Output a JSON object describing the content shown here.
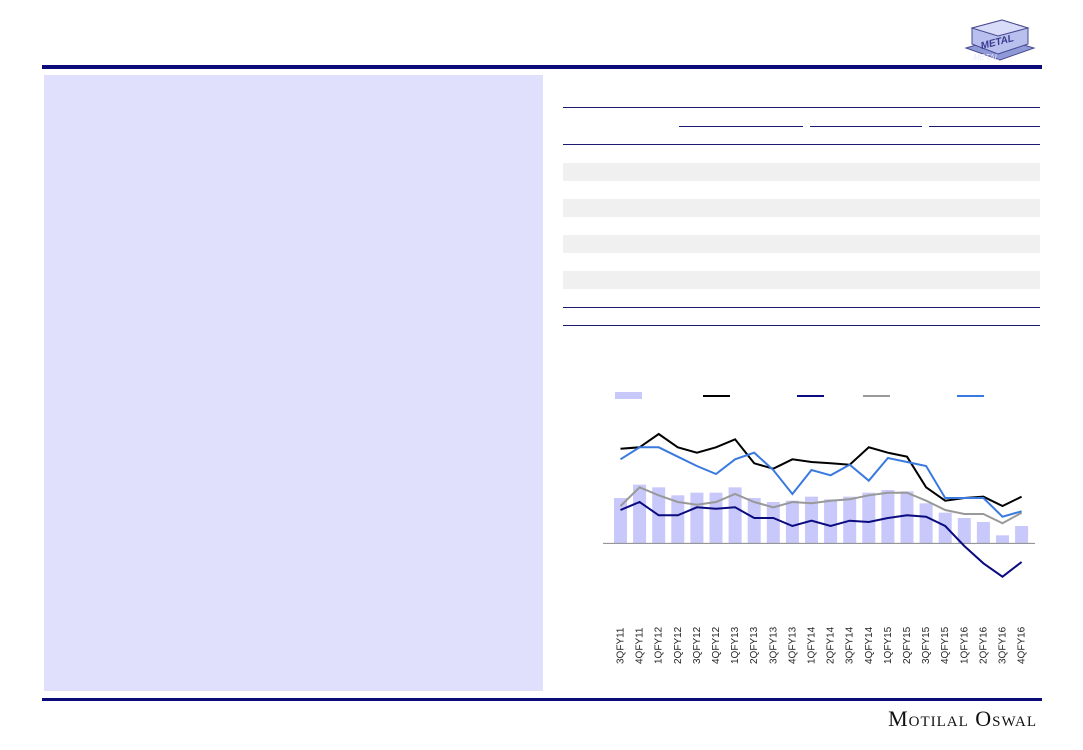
{
  "logo": {
    "text": "METAL",
    "text_lower": "METAL"
  },
  "brand": "Motilal Oswal",
  "colors": {
    "rule": "#0b0b7a",
    "panel": "#e0e0fc",
    "bar": "#c8c8fa",
    "black_line": "#000000",
    "navy_line": "#0b0b80",
    "gray_line": "#999999",
    "blue_line": "#3a7ae0"
  },
  "chart_data": {
    "type": "bar",
    "categories": [
      "3QFY11",
      "4QFY11",
      "1QFY12",
      "2QFY12",
      "3QFY12",
      "4QFY12",
      "1QFY13",
      "2QFY13",
      "3QFY13",
      "4QFY13",
      "1QFY14",
      "2QFY14",
      "3QFY14",
      "4QFY14",
      "1QFY15",
      "2QFY15",
      "3QFY15",
      "4QFY15",
      "1QFY16",
      "2QFY16",
      "3QFY16",
      "4QFY16"
    ],
    "ylim": [
      -35,
      100
    ],
    "series": [
      {
        "kind": "bar",
        "color": "#c8c8fa",
        "values": [
          34,
          44,
          42,
          36,
          38,
          38,
          42,
          34,
          31,
          32,
          35,
          33,
          35,
          38,
          40,
          39,
          30,
          23,
          19,
          16,
          6,
          13
        ]
      },
      {
        "kind": "line",
        "color": "#000000",
        "values": [
          71,
          72,
          82,
          72,
          68,
          72,
          78,
          60,
          56,
          63,
          61,
          60,
          59,
          72,
          68,
          65,
          42,
          32,
          34,
          35,
          28,
          35
        ]
      },
      {
        "kind": "line",
        "color": "#0b0b80",
        "values": [
          25,
          31,
          21,
          21,
          27,
          26,
          27,
          19,
          19,
          13,
          17,
          13,
          17,
          16,
          19,
          21,
          20,
          13,
          -2,
          -15,
          -25,
          -14
        ]
      },
      {
        "kind": "line",
        "color": "#999999",
        "values": [
          28,
          42,
          36,
          31,
          29,
          31,
          37,
          31,
          27,
          31,
          30,
          32,
          33,
          36,
          38,
          38,
          32,
          25,
          22,
          22,
          15,
          23
        ]
      },
      {
        "kind": "line",
        "color": "#3a7ae0",
        "values": [
          63,
          72,
          72,
          65,
          58,
          52,
          63,
          68,
          55,
          37,
          55,
          51,
          59,
          47,
          64,
          61,
          58,
          34,
          34,
          34,
          20,
          24
        ]
      }
    ]
  }
}
